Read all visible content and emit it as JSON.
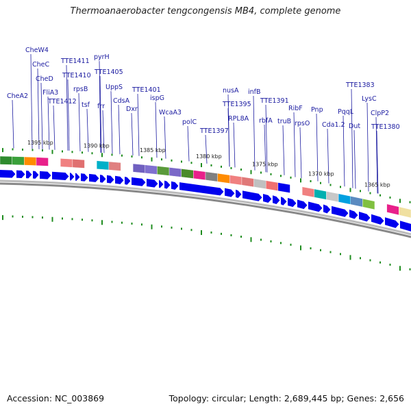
{
  "title": "Thermoanaerobacter tengcongensis MB4, complete genome",
  "footer": {
    "accession": "Accession: NC_003869",
    "topology": "Topology: circular; Length: 2,689,445 bp; Genes: 2,656"
  },
  "colors": {
    "label": "#1a1aa0",
    "arrow": "#0000ee",
    "backbone": "#888888",
    "tick": "#1e8c1e"
  },
  "kbp_ticks": [
    {
      "label": "1395 kbp",
      "x": 1395
    },
    {
      "label": "1390 kbp",
      "x": 1390
    },
    {
      "label": "1385 kbp",
      "x": 1385
    },
    {
      "label": "1380 kbp",
      "x": 1380
    },
    {
      "label": "1375 kbp",
      "x": 1375
    },
    {
      "label": "1370 kbp",
      "x": 1370
    },
    {
      "label": "1365 kbp",
      "x": 1365
    }
  ],
  "genes": [
    {
      "name": "CheA2"
    },
    {
      "name": "CheW4"
    },
    {
      "name": "CheC"
    },
    {
      "name": "CheD"
    },
    {
      "name": "FliA3"
    },
    {
      "name": "TTE1412"
    },
    {
      "name": "TTE1411"
    },
    {
      "name": "TTE1410"
    },
    {
      "name": "rpsB"
    },
    {
      "name": "tsf"
    },
    {
      "name": "pyrH"
    },
    {
      "name": "frr"
    },
    {
      "name": "TTE1405"
    },
    {
      "name": "UppS"
    },
    {
      "name": "CdsA"
    },
    {
      "name": "Dxr"
    },
    {
      "name": "TTE1401"
    },
    {
      "name": "ispG"
    },
    {
      "name": "WcaA3"
    },
    {
      "name": "polC"
    },
    {
      "name": "TTE1397"
    },
    {
      "name": "nusA"
    },
    {
      "name": "TTE1395"
    },
    {
      "name": "RPL8A"
    },
    {
      "name": "infB"
    },
    {
      "name": "rbfA"
    },
    {
      "name": "TTE1391"
    },
    {
      "name": "truB"
    },
    {
      "name": "RibF"
    },
    {
      "name": "rpsO"
    },
    {
      "name": "Pnp"
    },
    {
      "name": "Cda1.2"
    },
    {
      "name": "PqqL"
    },
    {
      "name": "Dut"
    },
    {
      "name": "TTE1383"
    },
    {
      "name": "LysC"
    },
    {
      "name": "ClpP2"
    },
    {
      "name": "TTE1380"
    }
  ],
  "cog_segments": [
    {
      "color": "#2e8b2e"
    },
    {
      "color": "#3aa03a"
    },
    {
      "color": "#ff8c00"
    },
    {
      "color": "#e8208a"
    },
    {
      "color": "#ffffff"
    },
    {
      "color": "#f08080"
    },
    {
      "color": "#e07070"
    },
    {
      "color": "#ffffff"
    },
    {
      "color": "#00b0c8"
    },
    {
      "color": "#e08080"
    },
    {
      "color": "#ffffff"
    },
    {
      "color": "#7060c0"
    },
    {
      "color": "#8070d0"
    },
    {
      "color": "#5a9a3a"
    },
    {
      "color": "#7a68c8"
    },
    {
      "color": "#4a8a2a"
    },
    {
      "color": "#e8208a"
    },
    {
      "color": "#808080"
    },
    {
      "color": "#ff8c00"
    },
    {
      "color": "#f08080"
    },
    {
      "color": "#e07878"
    },
    {
      "color": "#c0c0c0"
    },
    {
      "color": "#f07070"
    },
    {
      "color": "#0000ee"
    },
    {
      "color": "#ffffff"
    },
    {
      "color": "#f08080"
    },
    {
      "color": "#00b0b0"
    },
    {
      "color": "#c8c8c8"
    },
    {
      "color": "#00a0e0"
    },
    {
      "color": "#5a8ac0"
    },
    {
      "color": "#80c040"
    },
    {
      "color": "#ffffff"
    },
    {
      "color": "#e8208a"
    },
    {
      "color": "#f0e0a0"
    }
  ]
}
